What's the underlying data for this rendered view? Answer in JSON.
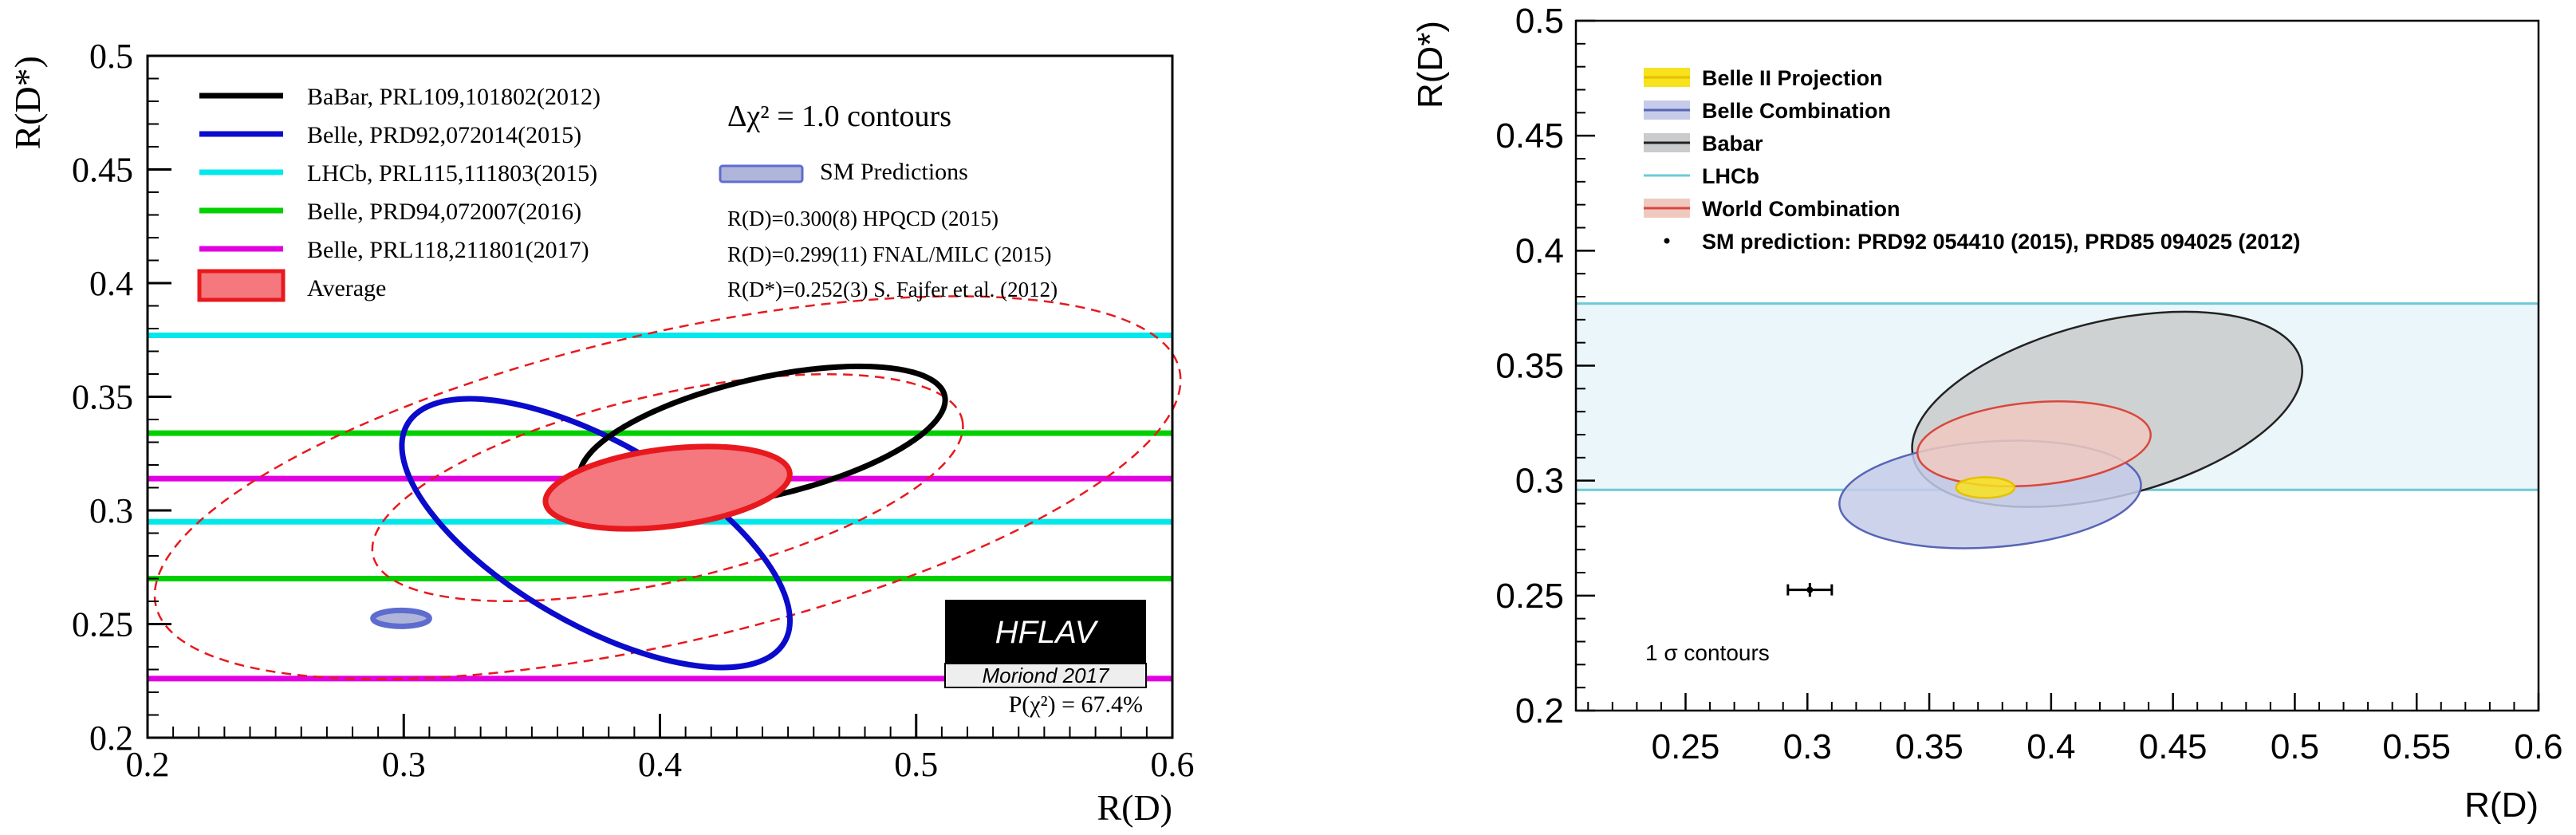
{
  "chart_data": [
    {
      "type": "scatter",
      "panel": "left",
      "title": "",
      "xlabel": "R(D)",
      "ylabel": "R(D*)",
      "xlim": [
        0.2,
        0.6
      ],
      "ylim": [
        0.2,
        0.5
      ],
      "x_ticks": [
        "0.2",
        "0.3",
        "0.4",
        "0.5",
        "0.6"
      ],
      "y_ticks": [
        "0.2",
        "0.25",
        "0.3",
        "0.35",
        "0.4",
        "0.45",
        "0.5"
      ],
      "contour_title": "Δχ² = 1.0 contours",
      "horizontal_lines": [
        {
          "name": "LHCb, PRL115,111803(2015)",
          "color": "#00e8ea",
          "y": 0.377
        },
        {
          "name": "LHCb, PRL115,111803(2015)",
          "color": "#00e8ea",
          "y": 0.295
        },
        {
          "name": "Belle, PRD94,072007(2016)",
          "color": "#00d000",
          "y": 0.334
        },
        {
          "name": "Belle, PRD94,072007(2016)",
          "color": "#00d000",
          "y": 0.27
        },
        {
          "name": "Belle, PRL118,211801(2017)",
          "color": "#e000e0",
          "y": 0.314
        },
        {
          "name": "Belle, PRL118,211801(2017)",
          "color": "#e000e0",
          "y": 0.226
        }
      ],
      "ellipses": [
        {
          "name": "BaBar, PRL109,101802(2012)",
          "color": "#000000",
          "fill": "none",
          "cx": 0.44,
          "cy": 0.332,
          "rx": 0.073,
          "ry": 0.026,
          "angle_deg": -13,
          "dash": false
        },
        {
          "name": "Belle, PRD92,072014(2015)",
          "color": "#0b0bcc",
          "fill": "none",
          "cx": 0.375,
          "cy": 0.29,
          "rx": 0.085,
          "ry": 0.04,
          "angle_deg": 30,
          "dash": false
        },
        {
          "name": "Average",
          "color": "#e8191e",
          "fill": "#f4787d",
          "cx": 0.403,
          "cy": 0.31,
          "rx": 0.048,
          "ry": 0.017,
          "angle_deg": -7,
          "dash": false
        },
        {
          "name": "Average 2σ",
          "color": "#e8191e",
          "fill": "none",
          "cx": 0.403,
          "cy": 0.31,
          "rx": 0.118,
          "ry": 0.041,
          "angle_deg": -13,
          "dash": true
        },
        {
          "name": "Average 3σ",
          "color": "#e8191e",
          "fill": "none",
          "cx": 0.403,
          "cy": 0.31,
          "rx": 0.205,
          "ry": 0.068,
          "angle_deg": -13,
          "dash": true
        },
        {
          "name": "SM Predictions",
          "color": "#5f6ccf",
          "fill": "#aeb5d9",
          "cx": 0.299,
          "cy": 0.2525,
          "rx": 0.011,
          "ry": 0.0035,
          "angle_deg": 0,
          "dash": false
        }
      ],
      "legend": [
        {
          "label": "BaBar, PRL109,101802(2012)",
          "color": "#000000",
          "kind": "line"
        },
        {
          "label": "Belle, PRD92,072014(2015)",
          "color": "#0b0bcc",
          "kind": "line"
        },
        {
          "label": "LHCb, PRL115,111803(2015)",
          "color": "#00e8ea",
          "kind": "line"
        },
        {
          "label": "Belle, PRD94,072007(2016)",
          "color": "#00d000",
          "kind": "line"
        },
        {
          "label": "Belle, PRL118,211801(2017)",
          "color": "#e000e0",
          "kind": "line"
        },
        {
          "label": "Average",
          "color": "#e8191e",
          "fill": "#f4787d",
          "kind": "box"
        }
      ],
      "sm_legend": {
        "label": "SM Predictions",
        "color": "#5f6ccf",
        "fill": "#aeb5d9"
      },
      "sm_notes": [
        "R(D)=0.300(8) HPQCD (2015)",
        "R(D)=0.299(11) FNAL/MILC (2015)",
        "R(D*)=0.252(3) S. Fajfer et al. (2012)"
      ],
      "badge": {
        "title": "HFLAV",
        "subtitle": "Moriond 2017"
      },
      "probability": "P(χ²) = 67.4%"
    },
    {
      "type": "scatter",
      "panel": "right",
      "title": "",
      "xlabel": "R(D)",
      "ylabel": "R(D*)",
      "xlim": [
        0.205,
        0.6
      ],
      "ylim": [
        0.2,
        0.5
      ],
      "x_ticks": [
        "0.25",
        "0.3",
        "0.35",
        "0.4",
        "0.45",
        "0.5",
        "0.55",
        "0.6"
      ],
      "y_ticks": [
        "0.2",
        "0.25",
        "0.3",
        "0.35",
        "0.4",
        "0.45",
        "0.5"
      ],
      "lhcb_band": {
        "name": "LHCb",
        "y_low": 0.296,
        "y_high": 0.377,
        "color": "#6fc8d6",
        "fill": "#eaf6f9"
      },
      "ellipses": [
        {
          "name": "Babar",
          "color": "#222222",
          "fill": "#c9cbcc",
          "cx": 0.423,
          "cy": 0.331,
          "rx": 0.082,
          "ry": 0.038,
          "angle_deg": -14
        },
        {
          "name": "Belle Combination",
          "color": "#5765b6",
          "fill": "#c6cbe9",
          "cx": 0.375,
          "cy": 0.294,
          "rx": 0.062,
          "ry": 0.023,
          "angle_deg": -4
        },
        {
          "name": "World Combination",
          "color": "#d9473d",
          "fill": "#efc9c0",
          "cx": 0.393,
          "cy": 0.316,
          "rx": 0.048,
          "ry": 0.018,
          "angle_deg": -5
        },
        {
          "name": "Belle II Projection",
          "color": "#e5c000",
          "fill": "#f7e21d",
          "cx": 0.373,
          "cy": 0.297,
          "rx": 0.012,
          "ry": 0.0045,
          "angle_deg": 0
        }
      ],
      "sm_point": {
        "x": 0.301,
        "y": 0.2525,
        "x_err": 0.009,
        "y_err": 0.003
      },
      "legend": [
        {
          "label": "Belle II Projection",
          "kind": "box",
          "color": "#e5c000",
          "fill": "#f7e21d"
        },
        {
          "label": "Belle Combination",
          "kind": "box",
          "color": "#5765b6",
          "fill": "#c6cbe9"
        },
        {
          "label": "Babar",
          "kind": "box",
          "color": "#222222",
          "fill": "#c9cbcc"
        },
        {
          "label": "LHCb",
          "kind": "line",
          "color": "#6fc8d6"
        },
        {
          "label": "World Combination",
          "kind": "box",
          "color": "#d9473d",
          "fill": "#efc9c0"
        },
        {
          "label": "SM prediction: PRD92 054410 (2015), PRD85 094025 (2012)",
          "kind": "dot",
          "color": "#000000"
        }
      ],
      "annotation": "1 σ contours"
    }
  ]
}
